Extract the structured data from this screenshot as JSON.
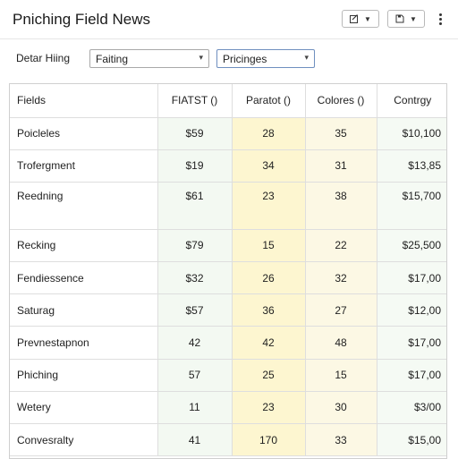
{
  "header": {
    "title": "Pniching Field News",
    "btn_a_icon": "edit-icon",
    "btn_b_icon": "save-icon"
  },
  "filter": {
    "label": "Detar Hiing",
    "select_1": "Faiting",
    "select_2": "Pricinges"
  },
  "table": {
    "columns": [
      "Fields",
      "FIATST ()",
      "Paratot ()",
      "Colores ()",
      "Contrgy"
    ],
    "rows": [
      {
        "name": "Poicleles",
        "a": "$59",
        "b": "28",
        "c": "35",
        "d": "$10,100"
      },
      {
        "name": "Trofergment",
        "a": "$19",
        "b": "34",
        "c": "31",
        "d": "$13,85"
      },
      {
        "name": "Reedning",
        "a": "$61",
        "b": "23",
        "c": "38",
        "d": "$15,700"
      },
      {
        "name": "Recking",
        "a": "$79",
        "b": "15",
        "c": "22",
        "d": "$25,500"
      },
      {
        "name": "Fendiessence",
        "a": "$32",
        "b": "26",
        "c": "32",
        "d": "$17,00"
      },
      {
        "name": "Saturag",
        "a": "$57",
        "b": "36",
        "c": "27",
        "d": "$12,00"
      },
      {
        "name": "Prevnestapnon",
        "a": "42",
        "b": "42",
        "c": "48",
        "d": "$17,00"
      },
      {
        "name": "Phiching",
        "a": "57",
        "b": "25",
        "c": "15",
        "d": "$17,00"
      },
      {
        "name": "Wetery",
        "a": "11",
        "b": "23",
        "c": "30",
        "d": "$3/00"
      },
      {
        "name": "Convesralty",
        "a": "41",
        "b": "170",
        "c": "33",
        "d": "$15,00"
      }
    ]
  }
}
